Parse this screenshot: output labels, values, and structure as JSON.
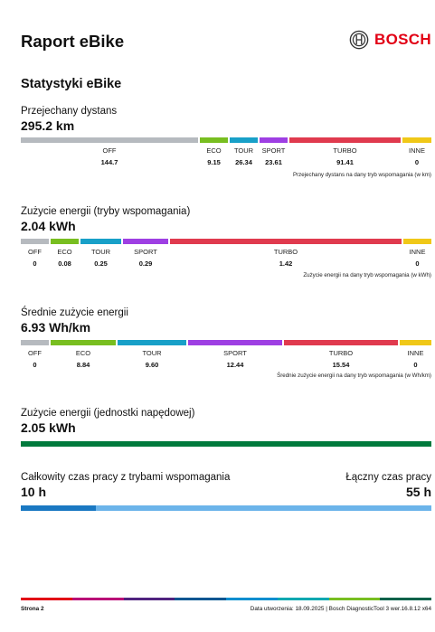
{
  "page": {
    "title": "Raport eBike",
    "logo_text": "BOSCH",
    "section_title": "Statystyki eBike",
    "footer_page": "Strona 2",
    "footer_info": "Data utworzenia: 18.09.2025 | Bosch DiagnosticTool 3 wer.16.8.12 x64"
  },
  "colors": {
    "off": "#b6babf",
    "eco": "#78be20",
    "tour": "#18a0c8",
    "sport": "#9e3fe3",
    "turbo": "#e03a4e",
    "inne": "#f0c818",
    "green": "#007a3d",
    "blue_dark": "#1a78c2",
    "blue_light": "#6cb4ea",
    "brand": "#e20015"
  },
  "distance": {
    "label": "Przejechany dystans",
    "value": "295.2 km",
    "note": "Przejechany dystans na dany tryb wspomagania (w km)",
    "segments": [
      {
        "name": "OFF",
        "value": "144.7"
      },
      {
        "name": "ECO",
        "value": "9.15"
      },
      {
        "name": "TOUR",
        "value": "26.34"
      },
      {
        "name": "SPORT",
        "value": "23.61"
      },
      {
        "name": "TURBO",
        "value": "91.41"
      },
      {
        "name": "INNE",
        "value": "0"
      }
    ]
  },
  "energy_modes": {
    "label": "Zużycie energii (tryby wspomagania)",
    "value": "2.04 kWh",
    "note": "Zużycie energii na dany tryb wspomagania (w kWh)",
    "segments": [
      {
        "name": "OFF",
        "value": "0"
      },
      {
        "name": "ECO",
        "value": "0.08"
      },
      {
        "name": "TOUR",
        "value": "0.25"
      },
      {
        "name": "SPORT",
        "value": "0.29"
      },
      {
        "name": "TURBO",
        "value": "1.42"
      },
      {
        "name": "INNE",
        "value": "0"
      }
    ]
  },
  "avg_energy": {
    "label": "Średnie zużycie energii",
    "value": "6.93 Wh/km",
    "note": "Średnie zużycie energii na dany tryb wspomagania (w Wh/km)",
    "segments": [
      {
        "name": "OFF",
        "value": "0"
      },
      {
        "name": "ECO",
        "value": "8.84"
      },
      {
        "name": "TOUR",
        "value": "9.60"
      },
      {
        "name": "SPORT",
        "value": "12.44"
      },
      {
        "name": "TURBO",
        "value": "15.54"
      },
      {
        "name": "INNE",
        "value": "0"
      }
    ]
  },
  "drive_unit_energy": {
    "label": "Zużycie energii (jednostki napędowej)",
    "value": "2.05 kWh"
  },
  "operating_time": {
    "assist_label": "Całkowity czas pracy z trybami wspomagania",
    "assist_value": "10 h",
    "total_label": "Łączny czas pracy",
    "total_value": "55 h",
    "assist_hours": 10,
    "total_hours": 55
  }
}
